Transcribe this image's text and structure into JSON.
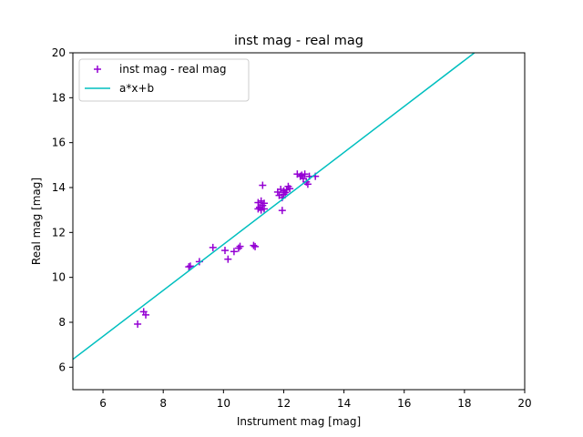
{
  "chart_data": {
    "type": "scatter",
    "title": "inst mag - real mag",
    "xlabel": "Instrument mag [mag]",
    "ylabel": "Real mag [mag]",
    "xlim": [
      5,
      20
    ],
    "ylim": [
      5,
      20
    ],
    "xticks": [
      6,
      8,
      10,
      12,
      14,
      16,
      18,
      20
    ],
    "yticks": [
      6,
      8,
      10,
      12,
      14,
      16,
      18,
      20
    ],
    "grid": false,
    "legend_position": "top-left",
    "series": [
      {
        "name": "inst mag - real mag",
        "kind": "scatter",
        "marker": "plus",
        "color": "#9400d3",
        "points": [
          [
            7.15,
            7.92
          ],
          [
            7.35,
            8.47
          ],
          [
            7.42,
            8.33
          ],
          [
            8.85,
            10.47
          ],
          [
            8.9,
            10.5
          ],
          [
            9.2,
            10.7
          ],
          [
            9.65,
            11.33
          ],
          [
            10.05,
            11.2
          ],
          [
            10.15,
            10.81
          ],
          [
            10.35,
            11.15
          ],
          [
            10.5,
            11.3
          ],
          [
            10.55,
            11.38
          ],
          [
            11.0,
            11.42
          ],
          [
            11.05,
            11.37
          ],
          [
            11.15,
            13.05
          ],
          [
            11.15,
            13.33
          ],
          [
            11.2,
            13.12
          ],
          [
            11.25,
            13.0
          ],
          [
            11.25,
            13.4
          ],
          [
            11.3,
            14.1
          ],
          [
            11.3,
            13.2
          ],
          [
            11.35,
            13.3
          ],
          [
            11.35,
            13.05
          ],
          [
            11.8,
            13.8
          ],
          [
            11.85,
            13.65
          ],
          [
            11.9,
            13.92
          ],
          [
            11.95,
            13.55
          ],
          [
            11.95,
            12.98
          ],
          [
            12.0,
            13.85
          ],
          [
            12.0,
            13.7
          ],
          [
            12.05,
            13.78
          ],
          [
            12.1,
            13.9
          ],
          [
            12.15,
            14.05
          ],
          [
            12.2,
            13.95
          ],
          [
            12.45,
            14.6
          ],
          [
            12.55,
            14.5
          ],
          [
            12.6,
            14.55
          ],
          [
            12.65,
            14.4
          ],
          [
            12.7,
            14.6
          ],
          [
            12.75,
            14.25
          ],
          [
            12.8,
            14.15
          ],
          [
            12.85,
            14.5
          ],
          [
            13.05,
            14.5
          ]
        ]
      },
      {
        "name": "a*x+b",
        "kind": "line",
        "color": "#00bfbf",
        "x": [
          5,
          18.33
        ],
        "y": [
          6.35,
          20.0
        ]
      }
    ]
  }
}
